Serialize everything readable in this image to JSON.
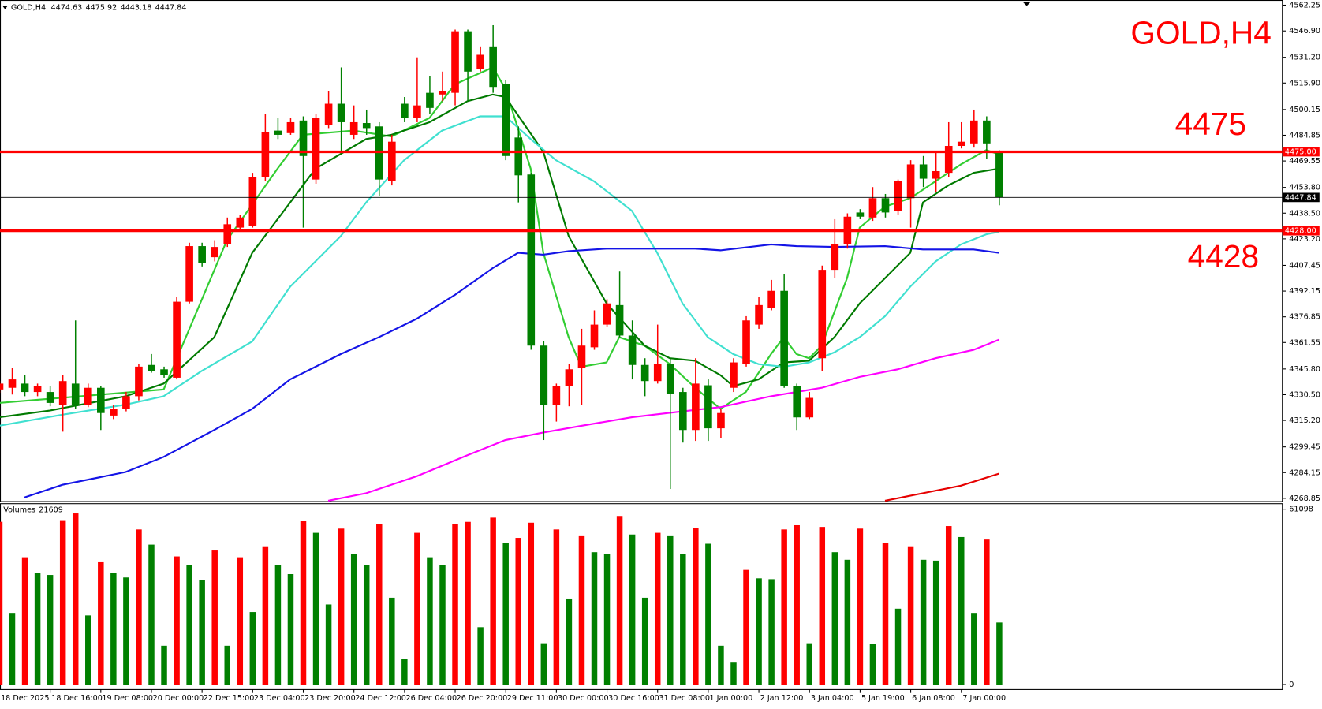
{
  "chart_data": {
    "type": "candlestick",
    "title": "GOLD,H4",
    "up_color": "#ff0000",
    "down_color": "#008000",
    "categories": [
      "18 Dec 2025",
      null,
      null,
      null,
      "18 Dec 16:00",
      null,
      null,
      null,
      "19 Dec 08:00",
      null,
      null,
      null,
      "20 Dec 00:00",
      null,
      null,
      null,
      "22 Dec 15:00",
      null,
      null,
      null,
      "23 Dec 04:00",
      null,
      null,
      null,
      "23 Dec 20:00",
      null,
      null,
      null,
      "24 Dec 12:00",
      null,
      null,
      null,
      "26 Dec 04:00",
      null,
      null,
      null,
      "26 Dec 20:00",
      null,
      null,
      null,
      "29 Dec 11:00",
      null,
      null,
      null,
      "30 Dec 00:00",
      null,
      null,
      null,
      "30 Dec 16:00",
      null,
      null,
      null,
      "31 Dec 08:00",
      null,
      null,
      null,
      "1 Jan 00:00",
      null,
      null,
      null,
      "2 Jan 12:00",
      null,
      null,
      null,
      "3 Jan 04:00",
      null,
      null,
      null,
      "5 Jan 19:00",
      null,
      null,
      null,
      "6 Jan 08:00",
      null,
      null,
      null,
      "7 Jan 00:00",
      null,
      null,
      null
    ],
    "open": [
      4333.6,
      4334.6,
      4337.1,
      4332.1,
      4332.1,
      4324.6,
      4337.1,
      4324.6,
      4334.6,
      4318.1,
      4322.1,
      4329.6,
      4348.2,
      4345.6,
      4340.6,
      4385.8,
      4418.9,
      4412.3,
      4419.9,
      4429.9,
      4430.9,
      4460.0,
      4487.6,
      4486.1,
      4493.6,
      4458.5,
      4491.1,
      4503.6,
      4485.1,
      4492.1,
      4490.1,
      4457.5,
      4503.6,
      4495.1,
      4510.1,
      4509.1,
      4510.1,
      4546.7,
      4524.2,
      4537.7,
      4515.2,
      4483.5,
      4461.5,
      4359.7,
      4324.6,
      4335.6,
      4346.2,
      4358.7,
      4372.2,
      4383.8,
      4365.7,
      4348.2,
      4338.6,
      4348.7,
      4332.1,
      4309.5,
      4336.1,
      4310.5,
      4334.6,
      4348.7,
      4372.2,
      4382.3,
      4392.3,
      4335.6,
      4317.0,
      4352.2,
      4404.8,
      4419.9,
      4438.9,
      4435.9,
      4447.4,
      4439.9,
      4447.4,
      4467.5,
      4459.0,
      4462.5,
      4478.5,
      4480.0,
      4493.6,
      4474.63
    ],
    "high": [
      4338.6,
      4346.2,
      4342.1,
      4337.1,
      4335.6,
      4342.1,
      4374.7,
      4337.1,
      4335.6,
      4324.6,
      4332.1,
      4348.7,
      4354.7,
      4347.2,
      4388.8,
      4420.9,
      4420.9,
      4422.4,
      4435.9,
      4437.4,
      4462.5,
      4497.6,
      4495.1,
      4495.1,
      4496.1,
      4497.6,
      4511.1,
      4525.2,
      4502.6,
      4500.1,
      4492.6,
      4485.1,
      4507.6,
      4531.2,
      4520.2,
      4522.7,
      4547.7,
      4547.7,
      4537.7,
      4550.3,
      4517.7,
      4490.1,
      4462.5,
      4362.2,
      4337.1,
      4348.7,
      4369.7,
      4380.7,
      4387.3,
      4403.8,
      4374.7,
      4352.2,
      4372.2,
      4352.2,
      4334.6,
      4352.2,
      4339.6,
      4322.1,
      4352.2,
      4377.2,
      4388.8,
      4398.8,
      4402.3,
      4337.1,
      4332.1,
      4407.3,
      4434.9,
      4438.4,
      4440.9,
      4454.0,
      4449.9,
      4458.5,
      4470.0,
      4472.5,
      4475.0,
      4492.6,
      4492.6,
      4500.1,
      4496.1,
      4475.92
    ],
    "low": [
      4331.6,
      4330.6,
      4329.6,
      4329.6,
      4323.6,
      4308.5,
      4322.1,
      4323.1,
      4309.5,
      4316.0,
      4320.6,
      4327.1,
      4343.6,
      4340.6,
      4339.6,
      4384.8,
      4406.8,
      4409.8,
      4418.4,
      4428.9,
      4429.9,
      4457.5,
      4482.6,
      4485.1,
      4429.9,
      4456.0,
      4489.1,
      4474.0,
      4482.6,
      4485.1,
      4448.9,
      4455.0,
      4492.6,
      4492.6,
      4497.6,
      4505.1,
      4502.6,
      4505.1,
      4522.7,
      4510.1,
      4470.0,
      4444.9,
      4357.2,
      4303.5,
      4314.5,
      4323.6,
      4324.6,
      4357.2,
      4370.7,
      4364.7,
      4339.6,
      4329.6,
      4337.1,
      4274.4,
      4302.0,
      4303.0,
      4303.0,
      4304.5,
      4332.1,
      4347.2,
      4369.7,
      4380.7,
      4334.6,
      4309.5,
      4316.0,
      4344.6,
      4399.8,
      4417.4,
      4434.9,
      4433.9,
      4435.9,
      4437.4,
      4429.9,
      4454.0,
      4450.9,
      4460.0,
      4477.0,
      4477.5,
      4471.0,
      4443.18
    ],
    "close": [
      4337.1,
      4339.6,
      4332.1,
      4335.6,
      4325.6,
      4338.6,
      4324.6,
      4334.6,
      4319.6,
      4322.1,
      4329.6,
      4347.2,
      4344.6,
      4342.1,
      4385.8,
      4418.9,
      4408.8,
      4418.4,
      4431.9,
      4435.9,
      4460.0,
      4486.6,
      4485.1,
      4492.6,
      4472.5,
      4495.1,
      4503.6,
      4492.6,
      4492.6,
      4489.1,
      4458.5,
      4481.0,
      4495.1,
      4502.6,
      4501.1,
      4511.1,
      4546.7,
      4522.7,
      4532.7,
      4513.6,
      4472.5,
      4461.0,
      4359.7,
      4324.6,
      4335.6,
      4345.6,
      4359.7,
      4372.2,
      4384.8,
      4365.7,
      4348.2,
      4338.6,
      4348.7,
      4331.1,
      4309.5,
      4337.1,
      4310.5,
      4319.6,
      4349.7,
      4374.7,
      4383.8,
      4392.3,
      4335.6,
      4317.0,
      4328.6,
      4404.8,
      4419.9,
      4436.4,
      4436.4,
      4447.4,
      4438.9,
      4457.5,
      4467.5,
      4459.0,
      4463.5,
      4478.5,
      4481.0,
      4493.6,
      4480.0,
      4447.84
    ],
    "ylim": [
      4266.9,
      4565.3
    ],
    "yticks": [
      4562.25,
      {
        "value": 4546.9,
        "label": "4546.90"
      },
      {
        "value": 4531.2,
        "label": "4531.20"
      },
      {
        "value": 4515.9,
        "label": "4515.90"
      },
      4500.15,
      4484.85,
      4469.55,
      {
        "value": 4453.8,
        "label": "4453.80"
      },
      {
        "value": 4438.5,
        "label": "4438.50"
      },
      {
        "value": 4423.2,
        "label": "4423.20"
      },
      4407.45,
      4392.15,
      4376.85,
      4361.55,
      {
        "value": 4345.8,
        "label": "4345.80"
      },
      {
        "value": 4330.5,
        "label": "4330.50"
      },
      {
        "value": 4315.2,
        "label": "4315.20"
      },
      4299.45,
      4284.15,
      4268.85
    ],
    "moving_averages": [
      {
        "color": "#32cd32",
        "x": [
          0,
          13,
          18,
          22,
          24,
          28,
          31,
          34,
          36,
          39,
          40,
          42,
          43,
          45,
          46,
          48,
          49,
          51,
          53,
          55,
          57,
          59,
          61,
          62,
          63,
          64,
          65,
          67,
          68,
          70,
          72,
          74,
          76,
          78,
          79
        ],
        "values": [
          4325.6,
          4333.6,
          4422.4,
          4465.0,
          4485.1,
          4487.6,
          4484.1,
          4495.1,
          4515.1,
          4525.2,
          4512.6,
          4465.0,
          4414.9,
          4364.7,
          4347.1,
          4349.7,
          4364.7,
          4359.7,
          4348.7,
          4334.6,
          4322.1,
          4332.1,
          4354.7,
          4364.7,
          4354.7,
          4352.2,
          4359.7,
          4399.8,
          4429.9,
          4442.4,
          4447.4,
          4457.5,
          4467.5,
          4476.0,
          4473.5
        ]
      },
      {
        "color": "#007a00",
        "x": [
          0,
          4,
          10,
          13,
          17,
          20,
          23,
          25,
          29,
          31,
          34,
          37,
          39,
          40,
          43,
          45,
          48,
          51,
          53,
          55,
          57,
          58,
          60,
          62,
          64,
          66,
          68,
          70,
          72,
          73,
          75,
          77,
          79
        ],
        "values": [
          4317.1,
          4321.1,
          4329.6,
          4337.1,
          4364.7,
          4414.9,
          4444.9,
          4465.0,
          4482.6,
          4485.1,
          4492.6,
          4505.1,
          4509.1,
          4507.6,
          4475.0,
          4424.9,
          4384.8,
          4359.7,
          4352.2,
          4350.7,
          4342.1,
          4335.6,
          4339.6,
          4349.7,
          4350.7,
          4364.7,
          4384.8,
          4399.8,
          4414.9,
          4444.9,
          4455.0,
          4462.5,
          4465.0
        ]
      },
      {
        "color": "#40e0d0",
        "x": [
          0,
          5,
          10,
          13,
          16,
          20,
          23,
          27,
          29,
          32,
          35,
          38,
          40,
          42,
          44,
          47,
          50,
          52,
          54,
          56,
          58,
          60,
          62,
          64,
          66,
          68,
          70,
          72,
          74,
          76,
          78,
          79
        ],
        "values": [
          4312.0,
          4318.6,
          4324.6,
          4329.6,
          4344.6,
          4362.2,
          4394.8,
          4424.9,
          4444.9,
          4470.0,
          4487.6,
          4496.1,
          4496.1,
          4482.6,
          4470.0,
          4457.5,
          4439.9,
          4414.9,
          4384.8,
          4364.7,
          4354.7,
          4348.7,
          4347.1,
          4349.7,
          4355.7,
          4364.7,
          4377.2,
          4394.8,
          4409.8,
          4419.9,
          4425.9,
          4427.4
        ]
      },
      {
        "color": "#1414e6",
        "x": [
          2,
          5,
          10,
          13,
          17,
          20,
          23,
          27,
          30,
          33,
          36,
          39,
          41,
          43,
          45,
          48,
          51,
          55,
          57,
          61,
          63,
          66,
          70,
          73,
          77,
          79
        ],
        "values": [
          4269.4,
          4276.9,
          4284.5,
          4293.5,
          4309.5,
          4322.1,
          4339.6,
          4354.7,
          4364.7,
          4375.7,
          4389.8,
          4405.8,
          4414.9,
          4413.8,
          4415.9,
          4417.4,
          4417.4,
          4417.4,
          4416.4,
          4419.9,
          4418.9,
          4418.4,
          4418.9,
          4416.9,
          4416.9,
          4414.9
        ]
      },
      {
        "color": "#ff00ff",
        "x": [
          26,
          29,
          33,
          37,
          40,
          43,
          46,
          50,
          54,
          57,
          61,
          63,
          65,
          68,
          71,
          74,
          77,
          79
        ],
        "values": [
          4267.4,
          4271.9,
          4282.0,
          4294.5,
          4303.5,
          4308.0,
          4312.0,
          4317.1,
          4320.6,
          4323.1,
          4329.6,
          4332.1,
          4334.6,
          4341.1,
          4345.6,
          4352.2,
          4357.2,
          4363.2
        ]
      },
      {
        "color": "#e60000",
        "x": [
          70,
          73,
          76,
          79
        ],
        "values": [
          4267.4,
          4271.9,
          4276.4,
          4283.5
        ]
      }
    ],
    "levels": [
      {
        "value": 4475,
        "label": "4475.00",
        "color": "#ff0000"
      },
      {
        "value": 4428,
        "label": "4428.00",
        "color": "#ff0000"
      }
    ],
    "current_price": 4447.84,
    "volume": {
      "label": "Volumes",
      "values": [
        56700,
        24960,
        44350,
        38770,
        38180,
        57270,
        59620,
        24080,
        42880,
        38770,
        37300,
        54040,
        48750,
        13510,
        44640,
        41710,
        36420,
        46700,
        13510,
        44350,
        25260,
        48170,
        41710,
        38470,
        56980,
        52870,
        27900,
        54330,
        45520,
        41710,
        55800,
        30250,
        8810,
        52870,
        44350,
        41710,
        55800,
        56680,
        19970,
        58150,
        49340,
        51100,
        56390,
        14390,
        54040,
        29960,
        51690,
        46110,
        45520,
        58740,
        52280,
        30250,
        52870,
        51690,
        45520,
        54630,
        49050,
        13510,
        7640,
        39940,
        37010,
        36710,
        54040,
        55510,
        14390,
        54920,
        46110,
        43470,
        54330,
        14100,
        49340,
        26430,
        48170,
        43470,
        43170,
        55220,
        51400,
        24960,
        50520,
        21609
      ],
      "ylim": [
        0,
        61098
      ],
      "yticks": [
        0,
        61098
      ]
    }
  }
}
